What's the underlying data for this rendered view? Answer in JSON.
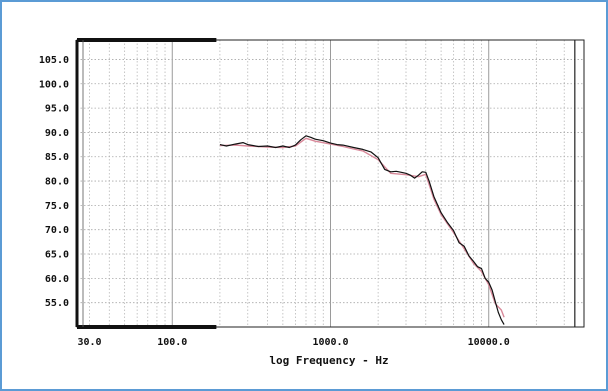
{
  "chart_data": {
    "type": "line",
    "title": "",
    "xlabel": "log Frequency - Hz",
    "ylabel": "",
    "x_scale": "log",
    "xlim": [
      25,
      40000
    ],
    "ylim": [
      50,
      109
    ],
    "grid": true,
    "x_ticks": [
      {
        "value": 30,
        "label": "30.0"
      },
      {
        "value": 100,
        "label": "100.0"
      },
      {
        "value": 1000,
        "label": "1000.0"
      },
      {
        "value": 10000,
        "label": "10000.0"
      }
    ],
    "y_ticks": [
      {
        "value": 105,
        "label": "105.0"
      },
      {
        "value": 100,
        "label": "100.0"
      },
      {
        "value": 95,
        "label": "95.0"
      },
      {
        "value": 90,
        "label": "90.0"
      },
      {
        "value": 85,
        "label": "85.0"
      },
      {
        "value": 80,
        "label": "80.0"
      },
      {
        "value": 75,
        "label": "75.0"
      },
      {
        "value": 70,
        "label": "70.0"
      },
      {
        "value": 65,
        "label": "65.0"
      },
      {
        "value": 60,
        "label": "60.0"
      },
      {
        "value": 55,
        "label": "55.0"
      }
    ],
    "series": [
      {
        "color": "#111111",
        "x": [
          200,
          220,
          250,
          280,
          300,
          350,
          400,
          450,
          500,
          550,
          600,
          650,
          700,
          750,
          800,
          900,
          1000,
          1100,
          1200,
          1400,
          1600,
          1800,
          2000,
          2200,
          2400,
          2600,
          2800,
          3000,
          3200,
          3400,
          3600,
          3800,
          4000,
          4200,
          4500,
          5000,
          5500,
          6000,
          6500,
          7000,
          7500,
          8000,
          8500,
          9000,
          9500,
          10000,
          10500,
          11000,
          11500,
          12000,
          12500
        ],
        "y": [
          87.5,
          87.2,
          87.6,
          87.9,
          87.5,
          87.1,
          87.2,
          86.9,
          87.2,
          86.9,
          87.4,
          88.5,
          89.3,
          89.0,
          88.6,
          88.3,
          87.8,
          87.5,
          87.4,
          86.9,
          86.5,
          86.0,
          84.8,
          82.4,
          81.9,
          82.0,
          81.8,
          81.6,
          81.2,
          80.6,
          81.2,
          81.9,
          81.8,
          80.0,
          76.8,
          73.5,
          71.4,
          69.8,
          67.3,
          66.6,
          64.6,
          63.5,
          62.4,
          62.0,
          60.0,
          59.2,
          57.6,
          55.2,
          53.0,
          51.5,
          50.5
        ]
      },
      {
        "color": "#d9899a",
        "x": [
          200,
          250,
          300,
          400,
          500,
          600,
          700,
          800,
          1000,
          1200,
          1400,
          1600,
          2000,
          2400,
          3000,
          3600,
          4000,
          4500,
          5000,
          6000,
          7000,
          8000,
          9000,
          10000,
          11000,
          12000,
          12500
        ],
        "y": [
          87.3,
          87.4,
          87.2,
          87.0,
          86.9,
          87.2,
          88.8,
          88.2,
          87.6,
          87.1,
          86.6,
          86.2,
          84.4,
          81.6,
          81.3,
          80.9,
          81.4,
          76.3,
          73.1,
          69.4,
          66.1,
          63.1,
          61.4,
          58.7,
          54.8,
          53.5,
          52.0
        ]
      }
    ]
  }
}
